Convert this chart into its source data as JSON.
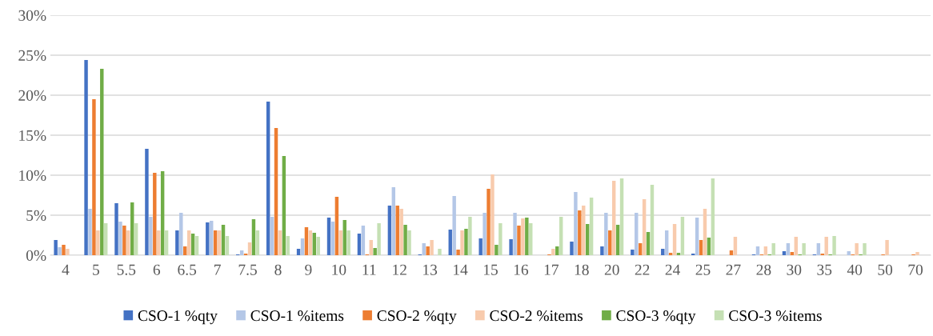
{
  "chart_data": {
    "type": "bar",
    "categories": [
      "4",
      "5",
      "5.5",
      "6",
      "6.5",
      "7",
      "7.5",
      "8",
      "9",
      "10",
      "11",
      "12",
      "13",
      "14",
      "15",
      "16",
      "17",
      "18",
      "20",
      "22",
      "24",
      "25",
      "27",
      "28",
      "30",
      "35",
      "40",
      "50",
      "70"
    ],
    "series": [
      {
        "name": "CSO-1 %qty",
        "color": "#4472c4",
        "values": [
          1.9,
          24.4,
          6.5,
          13.3,
          3.1,
          4.1,
          0.1,
          19.2,
          0.8,
          4.7,
          2.7,
          6.2,
          0.1,
          3.2,
          2.1,
          2.0,
          0,
          1.7,
          1.1,
          0.7,
          0.8,
          0.2,
          0,
          0.1,
          0.5,
          0.1,
          0,
          0,
          0
        ]
      },
      {
        "name": "CSO-1 %items",
        "color": "#b4c7e7",
        "values": [
          1.0,
          5.8,
          4.2,
          4.8,
          5.3,
          4.3,
          0.6,
          4.8,
          2.1,
          4.2,
          3.7,
          8.5,
          1.5,
          7.4,
          5.3,
          5.3,
          0,
          7.9,
          5.3,
          5.3,
          3.1,
          4.7,
          0,
          1.1,
          1.5,
          1.5,
          0.5,
          0,
          0
        ]
      },
      {
        "name": "CSO-2 %qty",
        "color": "#ed7d31",
        "values": [
          1.3,
          19.5,
          3.7,
          10.3,
          1.1,
          3.1,
          0.2,
          15.9,
          3.5,
          7.3,
          0.1,
          6.2,
          1.1,
          0.7,
          8.3,
          3.7,
          0.1,
          5.6,
          3.1,
          1.5,
          0.3,
          1.9,
          0.6,
          0.1,
          0.4,
          0.2,
          0.1,
          0.1,
          0.1
        ]
      },
      {
        "name": "CSO-2 %items",
        "color": "#f8cbad",
        "values": [
          0.8,
          3.1,
          3.1,
          3.1,
          3.1,
          3.1,
          1.6,
          3.1,
          3.1,
          3.1,
          1.9,
          5.8,
          1.9,
          3.1,
          10.1,
          4.6,
          0.8,
          6.2,
          9.3,
          7.0,
          3.9,
          5.8,
          2.3,
          1.1,
          2.3,
          2.3,
          1.5,
          1.9,
          0.4
        ]
      },
      {
        "name": "CSO-3 %qty",
        "color": "#70ad47",
        "values": [
          0,
          23.3,
          6.6,
          10.5,
          2.7,
          3.8,
          4.5,
          12.4,
          2.8,
          4.4,
          0.9,
          3.8,
          0,
          3.3,
          1.3,
          4.7,
          1.1,
          3.9,
          3.8,
          2.9,
          0.3,
          2.2,
          0,
          0.1,
          0.1,
          0.1,
          0.1,
          0,
          0
        ]
      },
      {
        "name": "CSO-3 %items",
        "color": "#c5e0b4",
        "values": [
          0,
          4.0,
          4.0,
          3.1,
          2.4,
          2.4,
          3.1,
          2.4,
          2.3,
          3.1,
          4.0,
          3.1,
          0.8,
          4.8,
          4.0,
          4.0,
          4.8,
          7.2,
          9.6,
          8.8,
          4.8,
          9.6,
          0,
          1.5,
          1.5,
          2.4,
          1.5,
          0,
          0
        ]
      }
    ],
    "ylim": [
      0,
      30
    ],
    "yticks": [
      {
        "value": 0,
        "label": "0%"
      },
      {
        "value": 5,
        "label": "5%"
      },
      {
        "value": 10,
        "label": "10%"
      },
      {
        "value": 15,
        "label": "15%"
      },
      {
        "value": 20,
        "label": "20%"
      },
      {
        "value": 25,
        "label": "25%"
      },
      {
        "value": 30,
        "label": "30%"
      }
    ],
    "grid": "y",
    "legend": "bottom"
  }
}
